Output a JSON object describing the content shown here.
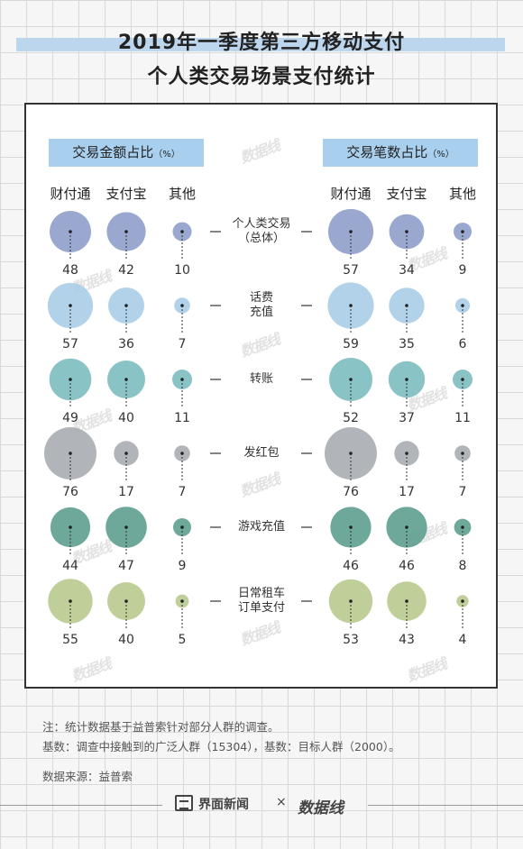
{
  "title": {
    "line1": "2019年一季度第三方移动支付",
    "line2": "个人类交易场景支付统计"
  },
  "sections": {
    "left": {
      "label": "交易金额占比",
      "unit": "（%）"
    },
    "right": {
      "label": "交易笔数占比",
      "unit": "（%）"
    }
  },
  "columns": [
    "财付通",
    "支付宝",
    "其他"
  ],
  "colors": {
    "total": "#8f9fcb",
    "phone": "#a9cde6",
    "transfer": "#7dbcbf",
    "redpacket": "#a8adb3",
    "game": "#5e9e8f",
    "travel": "#b9c98f"
  },
  "chart_data": {
    "type": "bubble",
    "categories": [
      "个人类交易（总体）",
      "话费充值",
      "转账",
      "发红包",
      "游戏充值",
      "日常租车订单支付"
    ],
    "category_labels": [
      [
        "个人类交易",
        "（总体）"
      ],
      [
        "话费",
        "充值"
      ],
      [
        "转账"
      ],
      [
        "发红包"
      ],
      [
        "游戏充值"
      ],
      [
        "日常租车",
        "订单支付"
      ]
    ],
    "series_names": [
      "财付通",
      "支付宝",
      "其他"
    ],
    "panels": [
      {
        "name": "交易金额占比",
        "values": [
          [
            48,
            42,
            10
          ],
          [
            57,
            36,
            7
          ],
          [
            49,
            40,
            11
          ],
          [
            76,
            17,
            7
          ],
          [
            44,
            47,
            9
          ],
          [
            55,
            40,
            5
          ]
        ]
      },
      {
        "name": "交易笔数占比",
        "values": [
          [
            57,
            34,
            9
          ],
          [
            59,
            35,
            6
          ],
          [
            52,
            37,
            11
          ],
          [
            76,
            17,
            7
          ],
          [
            46,
            46,
            8
          ],
          [
            53,
            43,
            4
          ]
        ]
      }
    ],
    "unit": "%"
  },
  "notes": {
    "note1": "注：统计数据基于益普索针对部分人群的调查。",
    "note2": "基数：调查中接触到的广泛人群（15304），基数：目标人群（2000）。",
    "source": "数据来源：益普索"
  },
  "footer": {
    "brand": "界面新闻",
    "separator": "×",
    "partner": "数据线"
  },
  "watermark": "数据线"
}
